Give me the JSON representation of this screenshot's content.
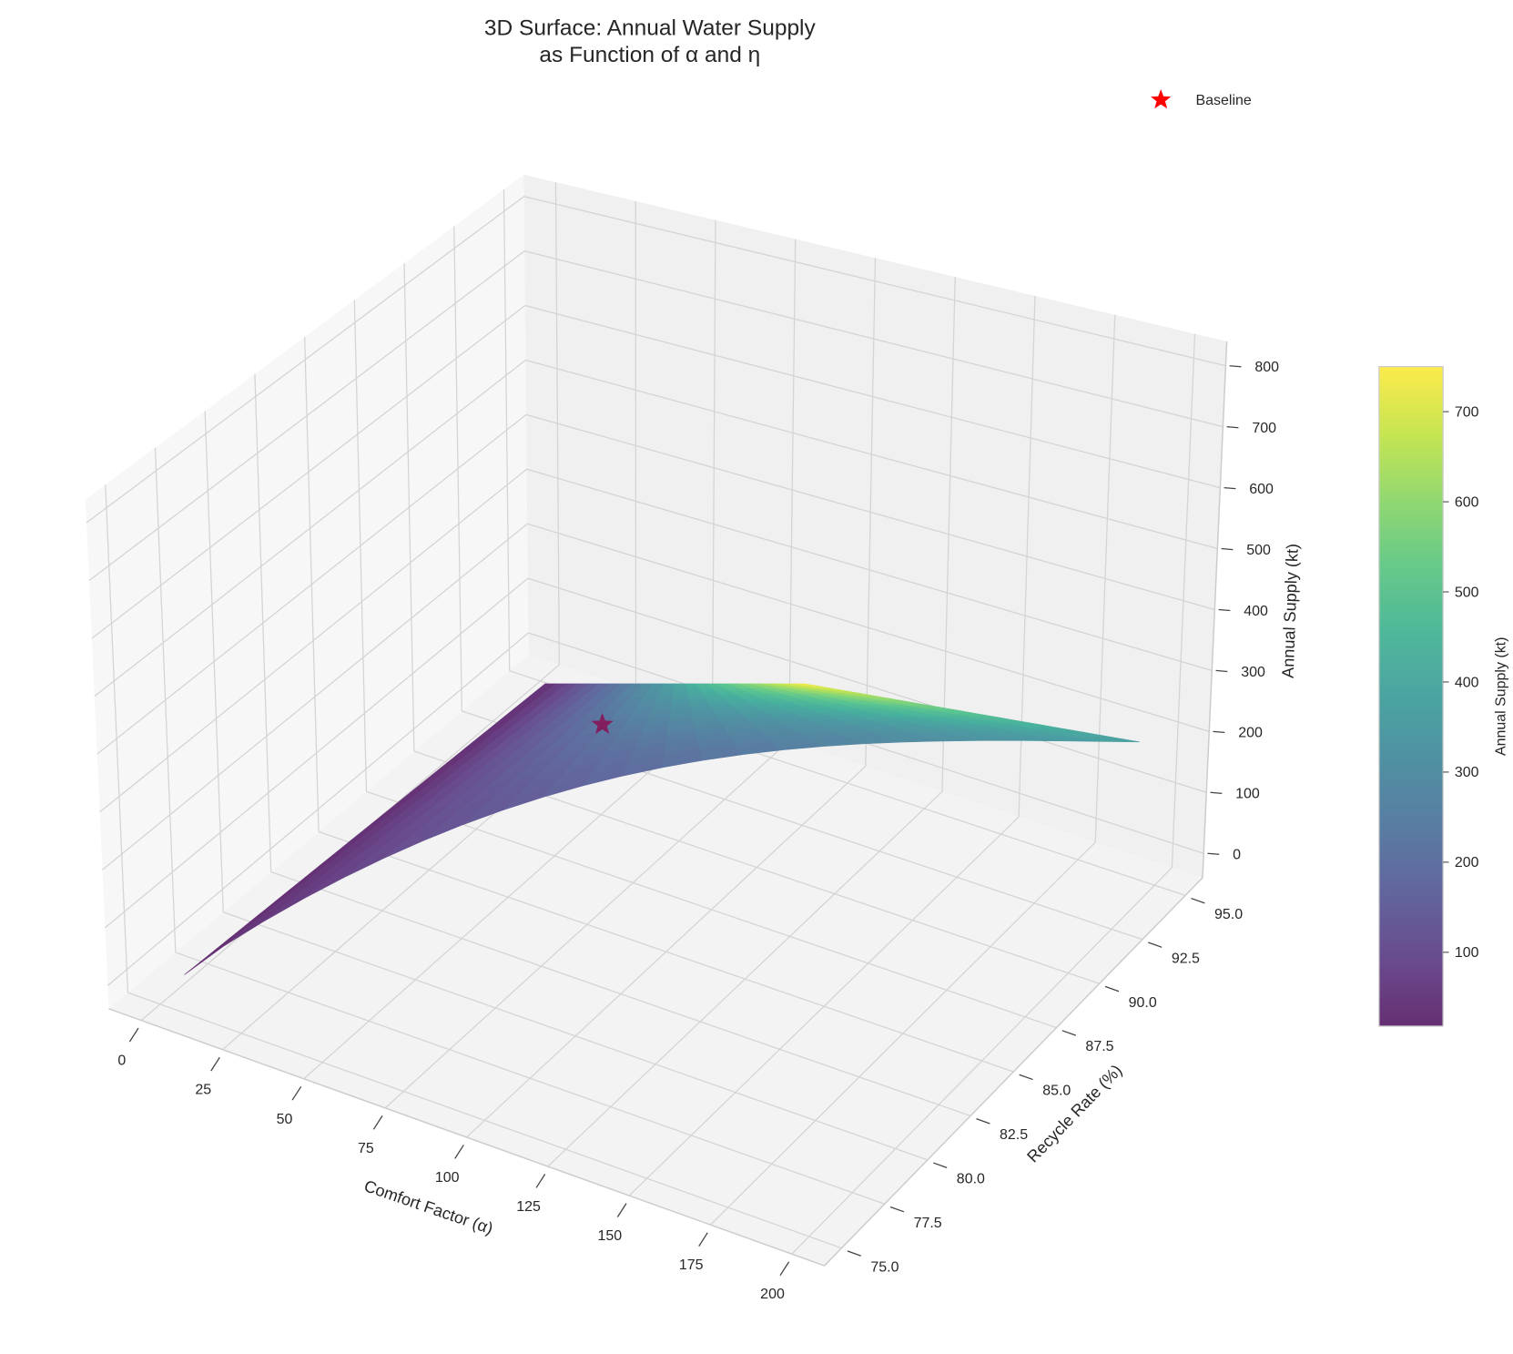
{
  "chart_data": {
    "type": "surface",
    "title_lines": [
      "3D Surface: Annual Water Supply",
      "as Function of α and η"
    ],
    "xlabel": "Comfort Factor (α)",
    "ylabel": "Recycle Rate (%)",
    "zlabel": "Annual Supply (kt)",
    "x_ticks": [
      "0",
      "25",
      "50",
      "75",
      "100",
      "125",
      "150",
      "175",
      "200"
    ],
    "y_ticks": [
      "75.0",
      "77.5",
      "80.0",
      "82.5",
      "85.0",
      "87.5",
      "90.0",
      "92.5",
      "95.0"
    ],
    "z_ticks": [
      "0",
      "100",
      "200",
      "300",
      "400",
      "500",
      "600",
      "700",
      "800"
    ],
    "xlim": [
      -10,
      210
    ],
    "ylim": [
      74,
      96
    ],
    "zlim": [
      -40,
      840
    ],
    "x_range": [
      0,
      200
    ],
    "y_range": [
      75,
      95
    ],
    "surface_value_range": [
      18,
      750
    ],
    "colormap": "viridis",
    "colorbar": {
      "label": "Annual Supply (kt)",
      "ticks": [
        "100",
        "200",
        "300",
        "400",
        "500",
        "600",
        "700"
      ],
      "range": [
        18,
        750
      ]
    },
    "legend": {
      "placement": "top-right",
      "entries": [
        {
          "label": "Baseline",
          "marker": "star",
          "color": "#ff0000"
        }
      ]
    },
    "grid": true
  }
}
